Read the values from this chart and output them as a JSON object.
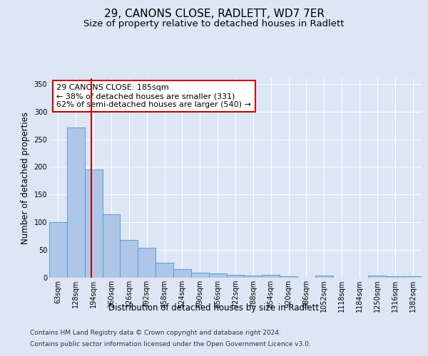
{
  "title": "29, CANONS CLOSE, RADLETT, WD7 7ER",
  "subtitle": "Size of property relative to detached houses in Radlett",
  "xlabel": "Distribution of detached houses by size in Radlett",
  "ylabel": "Number of detached properties",
  "footnote1": "Contains HM Land Registry data © Crown copyright and database right 2024.",
  "footnote2": "Contains public sector information licensed under the Open Government Licence v3.0.",
  "bin_labels": [
    "63sqm",
    "128sqm",
    "194sqm",
    "260sqm",
    "326sqm",
    "392sqm",
    "458sqm",
    "524sqm",
    "590sqm",
    "656sqm",
    "722sqm",
    "788sqm",
    "854sqm",
    "920sqm",
    "986sqm",
    "1052sqm",
    "1118sqm",
    "1184sqm",
    "1250sqm",
    "1316sqm",
    "1382sqm"
  ],
  "bar_heights": [
    100,
    271,
    195,
    115,
    68,
    54,
    27,
    16,
    9,
    8,
    5,
    4,
    5,
    3,
    0,
    4,
    0,
    0,
    4,
    3,
    3
  ],
  "bar_color": "#aec6e8",
  "bar_edge_color": "#5b9bd5",
  "vline_color": "#cc0000",
  "annotation_text": "29 CANONS CLOSE: 185sqm\n← 38% of detached houses are smaller (331)\n62% of semi-detached houses are larger (540) →",
  "annotation_box_color": "#ffffff",
  "annotation_box_edge_color": "#cc0000",
  "ylim": [
    0,
    360
  ],
  "yticks": [
    0,
    50,
    100,
    150,
    200,
    250,
    300,
    350
  ],
  "background_color": "#dce6f5",
  "grid_color": "#ffffff",
  "title_fontsize": 11,
  "subtitle_fontsize": 9.5,
  "axis_label_fontsize": 8.5,
  "tick_fontsize": 7,
  "footnote_fontsize": 6.5,
  "annotation_fontsize": 8
}
